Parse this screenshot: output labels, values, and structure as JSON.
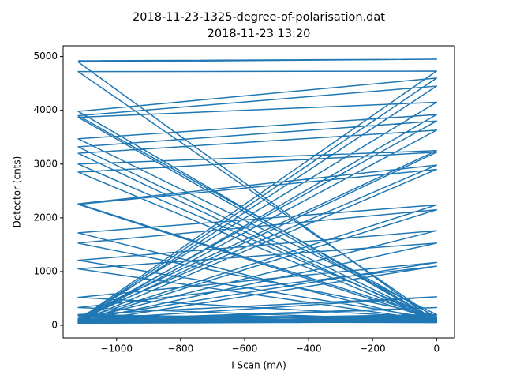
{
  "chart_data": {
    "type": "line",
    "title": "2018-11-23-1325-degree-of-polarisation.dat",
    "subtitle": "2018-11-23 13:20",
    "x_label": "I Scan (mA)",
    "y_label": "Detector (cnts)",
    "xlim": [
      -1167,
      56
    ],
    "ylim": [
      -235,
      5200
    ],
    "xticks": [
      {
        "value": -1000,
        "label": "−1000"
      },
      {
        "value": -800,
        "label": "−800"
      },
      {
        "value": -600,
        "label": "−600"
      },
      {
        "value": -400,
        "label": "−400"
      },
      {
        "value": -200,
        "label": "−200"
      },
      0
    ],
    "yticks": [
      0,
      1000,
      2000,
      3000,
      4000,
      5000
    ],
    "grid": false,
    "series": [
      {
        "color": "#1f77b4",
        "x": [
          -1120,
          0,
          -1120,
          0,
          -1120,
          0,
          -1120,
          0,
          -1120,
          0,
          -1120,
          0,
          -1120,
          0,
          -1120,
          0,
          -1120,
          0,
          -1120,
          0,
          -1120,
          0,
          -1120,
          0,
          -1120,
          0,
          -1120,
          0,
          -1120,
          0,
          -1120,
          0,
          -1120,
          0,
          -1120,
          0,
          -1120,
          0,
          -1120,
          0,
          -1120,
          0,
          -1120,
          0,
          -1120,
          0,
          -1120,
          0,
          -1120,
          0,
          -1120,
          0,
          -1120,
          0,
          -1120,
          0,
          -1120,
          0,
          -1120,
          0,
          -1120,
          0,
          -1120,
          0,
          -1120,
          0,
          -1120,
          0,
          -1120,
          0,
          -1120,
          0,
          -1120,
          0,
          -1120,
          0,
          -1120,
          0,
          -1120,
          0,
          -1120,
          0,
          -1120,
          0,
          -1120,
          0
        ],
        "values": [
          4920,
          4950,
          4900,
          60,
          100,
          4730,
          4720,
          120,
          80,
          4600,
          3980,
          90,
          60,
          4450,
          3900,
          150,
          120,
          4150,
          3870,
          80,
          50,
          3920,
          3470,
          200,
          90,
          3800,
          3320,
          100,
          70,
          3630,
          3200,
          60,
          150,
          3250,
          3000,
          110,
          80,
          3220,
          2850,
          70,
          120,
          2980,
          2260,
          130,
          60,
          2900,
          2250,
          90,
          100,
          2240,
          1720,
          50,
          70,
          2150,
          1530,
          180,
          90,
          1760,
          1210,
          120,
          60,
          1530,
          1050,
          80,
          110,
          1170,
          520,
          140,
          50,
          1100,
          330,
          90,
          200,
          530,
          100,
          330,
          60,
          150,
          180,
          60,
          40,
          120,
          90,
          200,
          70,
          80
        ]
      }
    ]
  }
}
